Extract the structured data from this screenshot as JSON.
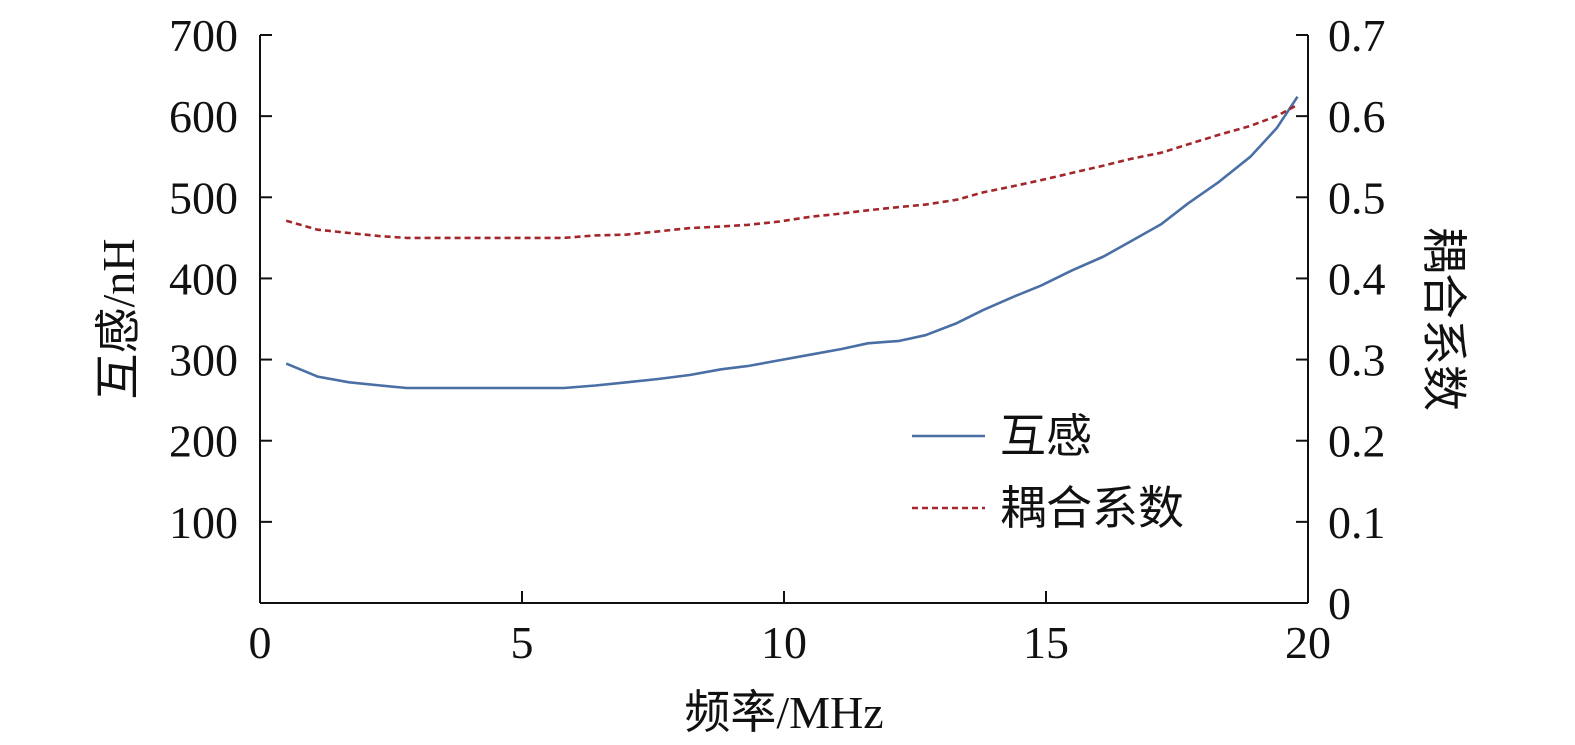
{
  "chart_data": {
    "type": "line",
    "title": "",
    "xlabel": "频率/MHz",
    "ylabel": "互感/nH",
    "y2label": "耦合系数",
    "xlim": [
      0,
      20
    ],
    "ylim": [
      0,
      700
    ],
    "y2lim": [
      0,
      0.7
    ],
    "xticks": [
      0,
      5,
      10,
      15,
      20
    ],
    "xtick_labels": [
      "0",
      "5",
      "10",
      "15",
      "20"
    ],
    "yticks": [
      100,
      200,
      300,
      400,
      500,
      600,
      700
    ],
    "ytick_labels": [
      "100",
      "200",
      "300",
      "400",
      "500",
      "600",
      "700"
    ],
    "y2ticks": [
      0,
      0.1,
      0.2,
      0.3,
      0.4,
      0.5,
      0.6,
      0.7
    ],
    "y2tick_labels": [
      "0",
      "0.1",
      "0.2",
      "0.3",
      "0.4",
      "0.5",
      "0.6",
      "0.7"
    ],
    "grid": false,
    "legend_position": "lower-right",
    "series": [
      {
        "name": "互感",
        "axis": "left",
        "color": "#4a6fa5",
        "style": "solid",
        "x": [
          0.5,
          1.1,
          1.7,
          2.3,
          2.8,
          3.4,
          4.0,
          4.6,
          5.2,
          5.8,
          6.4,
          7.0,
          7.6,
          8.2,
          8.8,
          9.3,
          9.9,
          10.5,
          11.1,
          11.6,
          12.2,
          12.7,
          13.3,
          13.8,
          14.4,
          14.9,
          15.5,
          16.1,
          16.6,
          17.2,
          17.7,
          18.3,
          18.9,
          19.4,
          19.8
        ],
        "values": [
          295,
          279,
          272,
          268,
          265,
          265,
          265,
          265,
          265,
          265,
          268,
          272,
          276,
          281,
          288,
          292,
          299,
          306,
          313,
          320,
          323,
          330,
          345,
          361,
          378,
          391,
          410,
          427,
          445,
          467,
          492,
          519,
          550,
          585,
          624
        ]
      },
      {
        "name": "耦合系数",
        "axis": "right",
        "color": "#a3262a",
        "style": "dotted",
        "x": [
          0.5,
          1.1,
          1.7,
          2.3,
          2.8,
          3.4,
          4.0,
          4.6,
          5.2,
          5.8,
          6.4,
          7.0,
          7.6,
          8.2,
          8.8,
          9.3,
          9.9,
          10.5,
          11.1,
          11.6,
          12.2,
          12.7,
          13.3,
          13.8,
          14.4,
          14.9,
          15.5,
          16.1,
          16.6,
          17.2,
          17.7,
          18.3,
          18.9,
          19.4,
          19.8
        ],
        "values": [
          0.471,
          0.46,
          0.456,
          0.452,
          0.45,
          0.45,
          0.45,
          0.45,
          0.45,
          0.45,
          0.453,
          0.454,
          0.458,
          0.462,
          0.464,
          0.466,
          0.47,
          0.476,
          0.48,
          0.484,
          0.488,
          0.491,
          0.497,
          0.506,
          0.514,
          0.521,
          0.53,
          0.539,
          0.547,
          0.555,
          0.565,
          0.577,
          0.588,
          0.6,
          0.614
        ]
      }
    ]
  }
}
